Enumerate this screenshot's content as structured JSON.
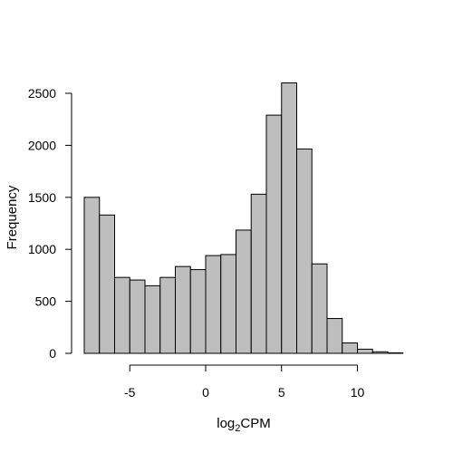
{
  "chart_data": {
    "type": "bar",
    "title": "",
    "xlabel": "log",
    "xlabel_subscript": "2",
    "xlabel_suffix": "CPM",
    "ylabel": "Frequency",
    "bin_edges": [
      -8,
      -7,
      -6,
      -5,
      -4,
      -3,
      -2,
      -1,
      0,
      1,
      2,
      3,
      4,
      5,
      6,
      7,
      8,
      9,
      10,
      11,
      12,
      13
    ],
    "values": [
      1500,
      1330,
      730,
      705,
      650,
      730,
      835,
      805,
      940,
      950,
      1185,
      1530,
      2290,
      2600,
      1965,
      860,
      335,
      100,
      40,
      15,
      5
    ],
    "xlim": [
      -8,
      13
    ],
    "ylim": [
      0,
      2600
    ],
    "x_ticks": [
      -5,
      0,
      5,
      10
    ],
    "y_ticks": [
      0,
      500,
      1000,
      1500,
      2000,
      2500
    ],
    "bar_fill": "#bebebe",
    "bar_stroke": "#000000",
    "grid": false,
    "legend": "none"
  }
}
